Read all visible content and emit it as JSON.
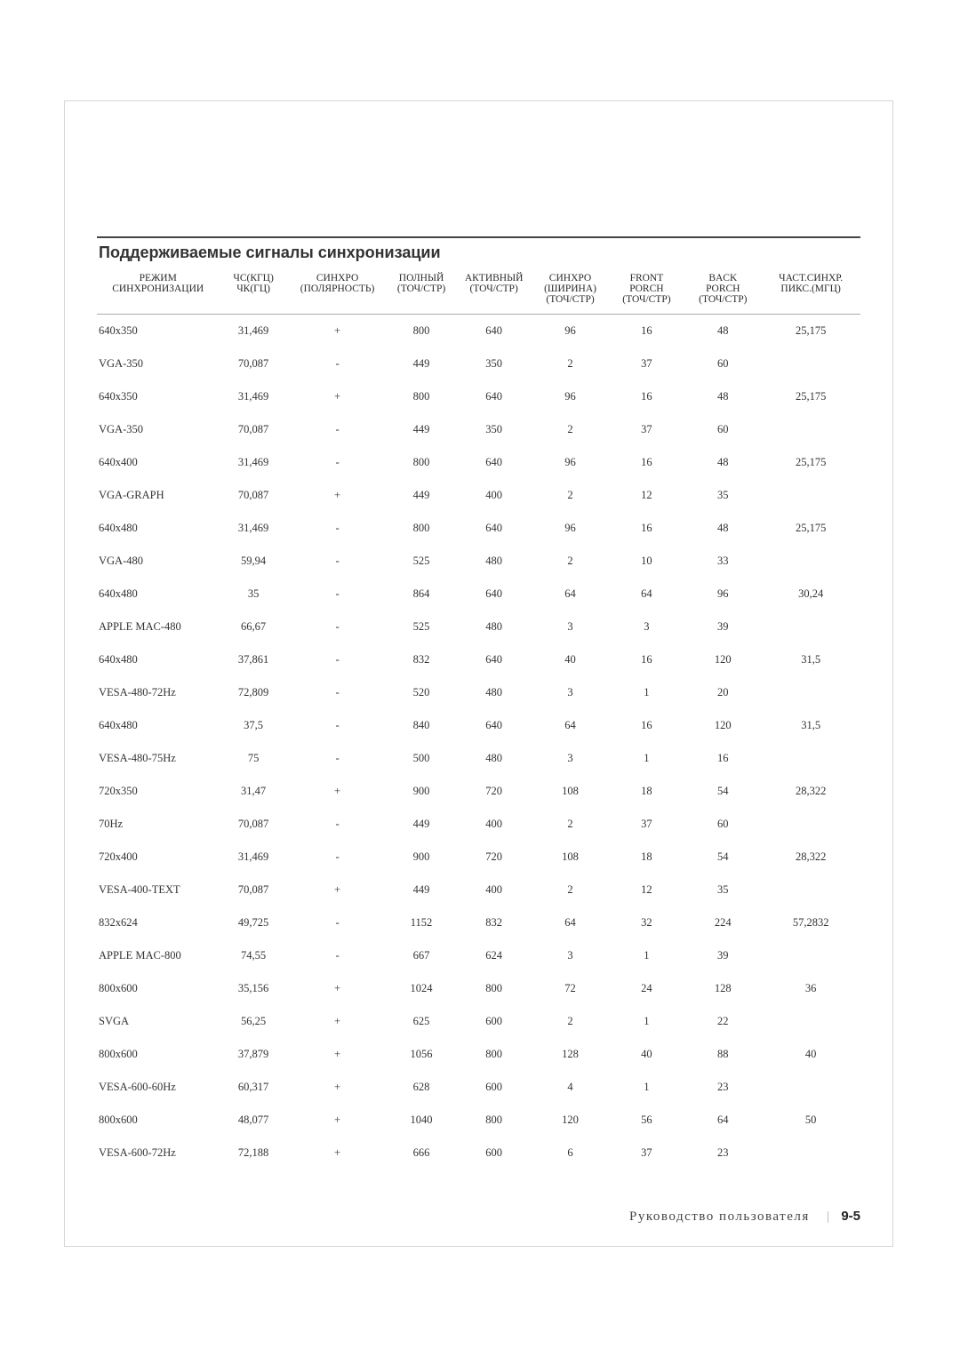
{
  "title": "Поддерживаемые сигналы синхронизации",
  "columns": [
    "РЕЖИМ\nСИНХРОНИЗАЦИИ",
    "ЧС(КГЦ)\nЧК(ГЦ)",
    "СИНХРО\n(ПОЛЯРНОСТЬ)",
    "ПОЛНЫЙ\n(ТОЧ/СТР)",
    "АКТИВНЫЙ\n(ТОЧ/СТР)",
    "СИНХРО\n(ШИРИНА)\n(ТОЧ/СТР)",
    "FRONT\nPORCH\n(ТОЧ/СТР)",
    "BACK\nPORCH\n(ТОЧ/СТР)",
    "ЧАСТ.СИНХР.\nПИКС.(МГЦ)"
  ],
  "rows": [
    [
      "640x350",
      "31,469",
      "+",
      "800",
      "640",
      "96",
      "16",
      "48",
      "25,175"
    ],
    [
      "VGA-350",
      "70,087",
      "-",
      "449",
      "350",
      "2",
      "37",
      "60",
      ""
    ],
    [
      "640x350",
      "31,469",
      "+",
      "800",
      "640",
      "96",
      "16",
      "48",
      "25,175"
    ],
    [
      "VGA-350",
      "70,087",
      "-",
      "449",
      "350",
      "2",
      "37",
      "60",
      ""
    ],
    [
      "640x400",
      "31,469",
      "-",
      "800",
      "640",
      "96",
      "16",
      "48",
      "25,175"
    ],
    [
      "VGA-GRAPH",
      "70,087",
      "+",
      "449",
      "400",
      "2",
      "12",
      "35",
      ""
    ],
    [
      "640x480",
      "31,469",
      "-",
      "800",
      "640",
      "96",
      "16",
      "48",
      "25,175"
    ],
    [
      "VGA-480",
      "59,94",
      "-",
      "525",
      "480",
      "2",
      "10",
      "33",
      ""
    ],
    [
      "640x480",
      "35",
      "-",
      "864",
      "640",
      "64",
      "64",
      "96",
      "30,24"
    ],
    [
      "APPLE MAC-480",
      "66,67",
      "-",
      "525",
      "480",
      "3",
      "3",
      "39",
      ""
    ],
    [
      "640x480",
      "37,861",
      "-",
      "832",
      "640",
      "40",
      "16",
      "120",
      "31,5"
    ],
    [
      "VESA-480-72Hz",
      "72,809",
      "-",
      "520",
      "480",
      "3",
      "1",
      "20",
      ""
    ],
    [
      "640x480",
      "37,5",
      "-",
      "840",
      "640",
      "64",
      "16",
      "120",
      "31,5"
    ],
    [
      "VESA-480-75Hz",
      "75",
      "-",
      "500",
      "480",
      "3",
      "1",
      "16",
      ""
    ],
    [
      "720x350",
      "31,47",
      "+",
      "900",
      "720",
      "108",
      "18",
      "54",
      "28,322"
    ],
    [
      "70Hz",
      "70,087",
      "-",
      "449",
      "400",
      "2",
      "37",
      "60",
      ""
    ],
    [
      "720x400",
      "31,469",
      "-",
      "900",
      "720",
      "108",
      "18",
      "54",
      "28,322"
    ],
    [
      "VESA-400-TEXT",
      "70,087",
      "+",
      "449",
      "400",
      "2",
      "12",
      "35",
      ""
    ],
    [
      "832x624",
      "49,725",
      "-",
      "1152",
      "832",
      "64",
      "32",
      "224",
      "57,2832"
    ],
    [
      "APPLE MAC-800",
      "74,55",
      "-",
      "667",
      "624",
      "3",
      "1",
      "39",
      ""
    ],
    [
      "800x600",
      "35,156",
      "+",
      "1024",
      "800",
      "72",
      "24",
      "128",
      "36"
    ],
    [
      "SVGA",
      "56,25",
      "+",
      "625",
      "600",
      "2",
      "1",
      "22",
      ""
    ],
    [
      "800x600",
      "37,879",
      "+",
      "1056",
      "800",
      "128",
      "40",
      "88",
      "40"
    ],
    [
      "VESA-600-60Hz",
      "60,317",
      "+",
      "628",
      "600",
      "4",
      "1",
      "23",
      ""
    ],
    [
      "800x600",
      "48,077",
      "+",
      "1040",
      "800",
      "120",
      "56",
      "64",
      "50"
    ],
    [
      "VESA-600-72Hz",
      "72,188",
      "+",
      "666",
      "600",
      "6",
      "37",
      "23",
      ""
    ]
  ],
  "footer_text": "Руководство пользователя",
  "page_number": "9-5",
  "colors": {
    "border_outer": "#d6d6d6",
    "rule_heavy": "#444444",
    "rule_light": "#bfbfbf",
    "text": "#333333"
  }
}
